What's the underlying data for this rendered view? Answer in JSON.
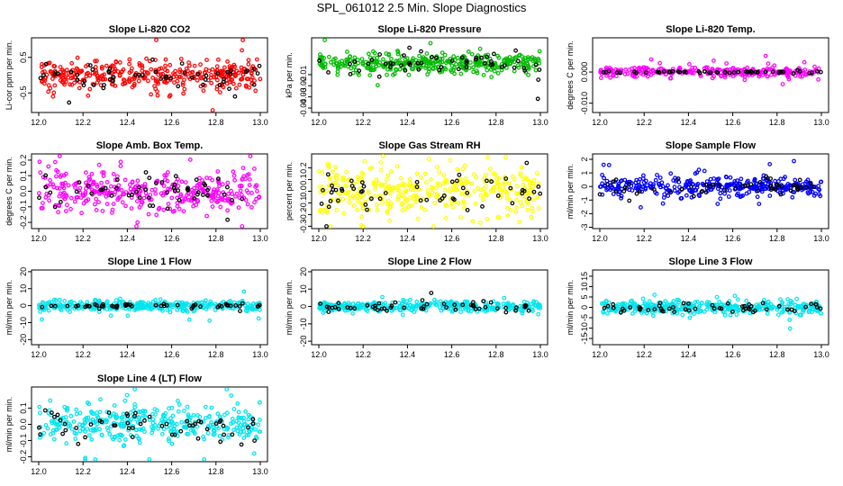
{
  "figure": {
    "title": "SPL_061012  2.5 Min. Slope Diagnostics"
  },
  "chart_data": [
    {
      "type": "scatter",
      "title": "Slope Li-820 CO2",
      "ylabel": "Li-cor ppm per min.",
      "xlim": [
        12.0,
        13.0
      ],
      "ylim": [
        -1.05,
        1.05
      ],
      "xticks": [
        "12.0",
        "12.2",
        "12.4",
        "12.6",
        "12.8",
        "13.0"
      ],
      "yticks": [
        "-0.5",
        "0.5"
      ],
      "series": [
        {
          "color": "#ff0000",
          "spread": 0.22,
          "npoints": 360
        },
        {
          "color": "#000000",
          "spread": 0.18,
          "npoints": 55
        }
      ]
    },
    {
      "type": "scatter",
      "title": "Slope Li-820 Pressure",
      "ylabel": "kPa per min.",
      "xlim": [
        12.0,
        13.0
      ],
      "ylim": [
        -0.044,
        0.023
      ],
      "xticks": [
        "12.0",
        "12.2",
        "12.4",
        "12.6",
        "12.8",
        "13.0"
      ],
      "yticks": [
        "-0.04",
        "-0.03",
        "-0.02",
        "-0.01"
      ],
      "series": [
        {
          "color": "#00bb00",
          "spread": 0.004,
          "npoints": 360
        },
        {
          "color": "#000000",
          "spread": 0.005,
          "npoints": 55
        }
      ]
    },
    {
      "type": "scatter",
      "title": "Slope Li-820 Temp.",
      "ylabel": "degrees C per min.",
      "xlim": [
        12.0,
        13.0
      ],
      "ylim": [
        -0.013,
        0.011
      ],
      "xticks": [
        "12.0",
        "12.2",
        "12.4",
        "12.6",
        "12.8",
        "13.0"
      ],
      "yticks": [
        "-0.010",
        "0.000"
      ],
      "series": [
        {
          "color": "#ff00ff",
          "spread": 0.0008,
          "npoints": 300
        },
        {
          "color": "#000000",
          "spread": 0.0002,
          "npoints": 55
        }
      ]
    },
    {
      "type": "scatter",
      "title": "Slope Amb. Box Temp.",
      "ylabel": "degrees C per min.",
      "xlim": [
        12.0,
        13.0
      ],
      "ylim": [
        -0.24,
        0.24
      ],
      "xticks": [
        "12.0",
        "12.2",
        "12.4",
        "12.6",
        "12.8",
        "13.0"
      ],
      "yticks": [
        "-0.2",
        "-0.1",
        "0.0",
        "0.1",
        "0.2"
      ],
      "series": [
        {
          "color": "#ff00ff",
          "spread": 0.07,
          "npoints": 360
        },
        {
          "color": "#000000",
          "spread": 0.05,
          "npoints": 55
        }
      ]
    },
    {
      "type": "scatter",
      "title": "Slope Gas Stream RH",
      "ylabel": "percent per min.",
      "xlim": [
        12.0,
        13.0
      ],
      "ylim": [
        -0.32,
        0.32
      ],
      "xticks": [
        "12.0",
        "12.2",
        "12.4",
        "12.6",
        "12.8",
        "13.0"
      ],
      "yticks": [
        "-0.3",
        "-0.2",
        "-0.1",
        "0.0",
        "0.1",
        "0.2"
      ],
      "series": [
        {
          "color": "#ffff00",
          "spread": 0.1,
          "npoints": 360
        },
        {
          "color": "#000000",
          "spread": 0.07,
          "npoints": 55
        }
      ]
    },
    {
      "type": "scatter",
      "title": "Slope Sample Flow",
      "ylabel": "ml/min per min.",
      "xlim": [
        12.0,
        13.0
      ],
      "ylim": [
        -3.1,
        2.4
      ],
      "xticks": [
        "12.0",
        "12.2",
        "12.4",
        "12.6",
        "12.8",
        "13.0"
      ],
      "yticks": [
        "-3",
        "-2",
        "-1",
        "0",
        "1",
        "2"
      ],
      "series": [
        {
          "color": "#0000ff",
          "spread": 0.35,
          "npoints": 360
        },
        {
          "color": "#000000",
          "spread": 0.3,
          "npoints": 55
        }
      ]
    },
    {
      "type": "scatter",
      "title": "Slope Line 1 Flow",
      "ylabel": "ml/min per min.",
      "xlim": [
        12.0,
        13.0
      ],
      "ylim": [
        -23,
        21
      ],
      "xticks": [
        "12.0",
        "12.2",
        "12.4",
        "12.6",
        "12.8",
        "13.0"
      ],
      "yticks": [
        "-20",
        "-10",
        "0",
        "10",
        "20"
      ],
      "series": [
        {
          "color": "#00e5ee",
          "spread": 1.5,
          "npoints": 360
        },
        {
          "color": "#000000",
          "spread": 0.6,
          "npoints": 55
        }
      ]
    },
    {
      "type": "scatter",
      "title": "Slope Line 2 Flow",
      "ylabel": "ml/min per min.",
      "xlim": [
        12.0,
        13.0
      ],
      "ylim": [
        -22,
        21
      ],
      "xticks": [
        "12.0",
        "12.2",
        "12.4",
        "12.6",
        "12.8",
        "13.0"
      ],
      "yticks": [
        "-20",
        "-10",
        "0",
        "10",
        "20"
      ],
      "series": [
        {
          "color": "#00e5ee",
          "spread": 1.5,
          "npoints": 360
        },
        {
          "color": "#000000",
          "spread": 1.5,
          "npoints": 55
        }
      ]
    },
    {
      "type": "scatter",
      "title": "Slope Line 3 Flow",
      "ylabel": "ml/min per min.",
      "xlim": [
        12.0,
        13.0
      ],
      "ylim": [
        -18,
        18
      ],
      "xticks": [
        "12.0",
        "12.2",
        "12.4",
        "12.6",
        "12.8",
        "13.0"
      ],
      "yticks": [
        "-15",
        "-10",
        "-5",
        "0",
        "5",
        "10",
        "15"
      ],
      "series": [
        {
          "color": "#00e5ee",
          "spread": 1.5,
          "npoints": 360
        },
        {
          "color": "#000000",
          "spread": 1.5,
          "npoints": 55
        }
      ]
    },
    {
      "type": "scatter",
      "title": "Slope Line 4 (LT) Flow",
      "ylabel": "ml/min per min.",
      "xlim": [
        12.0,
        13.0
      ],
      "ylim": [
        -0.23,
        0.23
      ],
      "xticks": [
        "12.0",
        "12.2",
        "12.4",
        "12.6",
        "12.8",
        "13.0"
      ],
      "yticks": [
        "-0.2",
        "-0.1",
        "0.0",
        "0.1"
      ],
      "series": [
        {
          "color": "#00e5ee",
          "spread": 0.06,
          "npoints": 360
        },
        {
          "color": "#000000",
          "spread": 0.05,
          "npoints": 55
        }
      ]
    }
  ]
}
